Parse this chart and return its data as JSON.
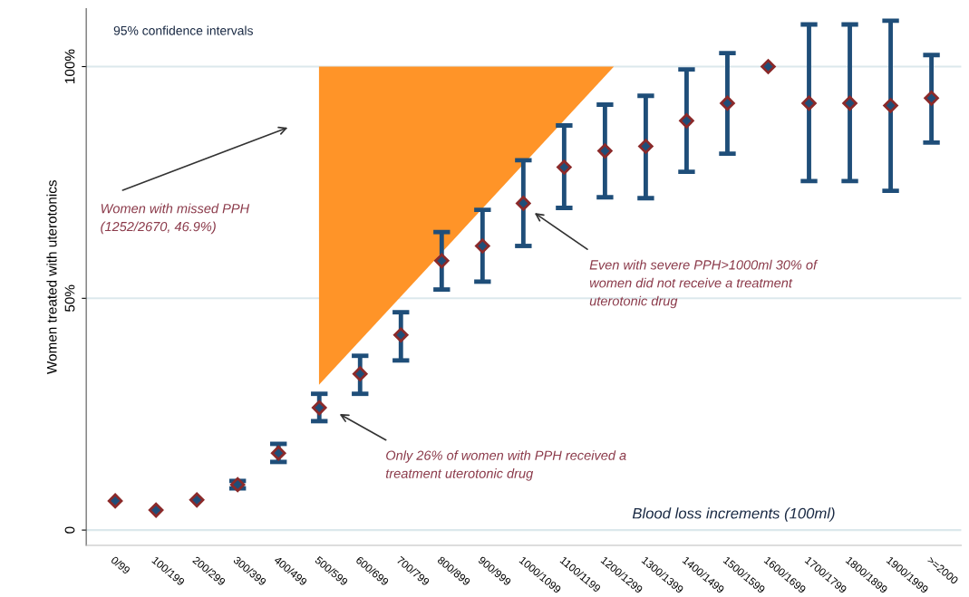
{
  "chart_data": {
    "type": "scatter",
    "ylabel": "Women treated with uterotonics",
    "xlabel": "Blood loss increments (100ml)",
    "categories": [
      "0/99",
      "100/199",
      "200/299",
      "300/399",
      "400/499",
      "500/599",
      "600/699",
      "700/799",
      "800/899",
      "900/999",
      "1000/1099",
      "1100/1199",
      "1200/1299",
      "1300/1399",
      "1400/1499",
      "1500/1599",
      "1600/1699",
      "1700/1799",
      "1800/1899",
      "1900/1999",
      ">=2000"
    ],
    "series": [
      {
        "color": "#1f4e79",
        "marker": "diamond",
        "values": [
          6.3,
          4.3,
          6.5,
          9.8,
          16.6,
          26.4,
          33.7,
          42.1,
          58.1,
          61.3,
          70.5,
          78.3,
          81.8,
          82.8,
          88.3,
          92.1,
          100,
          92.1,
          92.1,
          91.6,
          93.2
        ],
        "errors": [
          null,
          null,
          null,
          0.8,
          [
            14.7,
            18.6
          ],
          [
            23.5,
            29.4
          ],
          [
            29.4,
            37.6
          ],
          [
            36.6,
            47
          ],
          [
            51.9,
            64.3
          ],
          [
            53.6,
            69.1
          ],
          [
            61.3,
            79.8
          ],
          [
            69.5,
            87.3
          ],
          [
            71.8,
            91.8
          ],
          [
            71.6,
            93.7
          ],
          [
            77.3,
            99.4
          ],
          [
            81.2,
            102.9
          ],
          null,
          [
            75.3,
            109.1
          ],
          [
            75.3,
            109.1
          ],
          [
            73.2,
            109.9
          ],
          [
            83.6,
            102.5
          ]
        ]
      }
    ],
    "ylim": [
      -3.3,
      112.5
    ],
    "yticks": [
      {
        "value": 0,
        "label": "0"
      },
      {
        "value": 50,
        "label": "50%"
      },
      {
        "value": 100,
        "label": "100%"
      }
    ],
    "grid": "y",
    "annotations": [
      "95% confidence intervals",
      "Women with missed PPH\n(1252/2670, 46.9%)",
      "Only 26% of women with PPH received a\ntreatment uterotonic drug",
      "Even with severe PPH>1000ml 30% of\nwomen did not receive a treatment\nuterotonic drug"
    ]
  }
}
